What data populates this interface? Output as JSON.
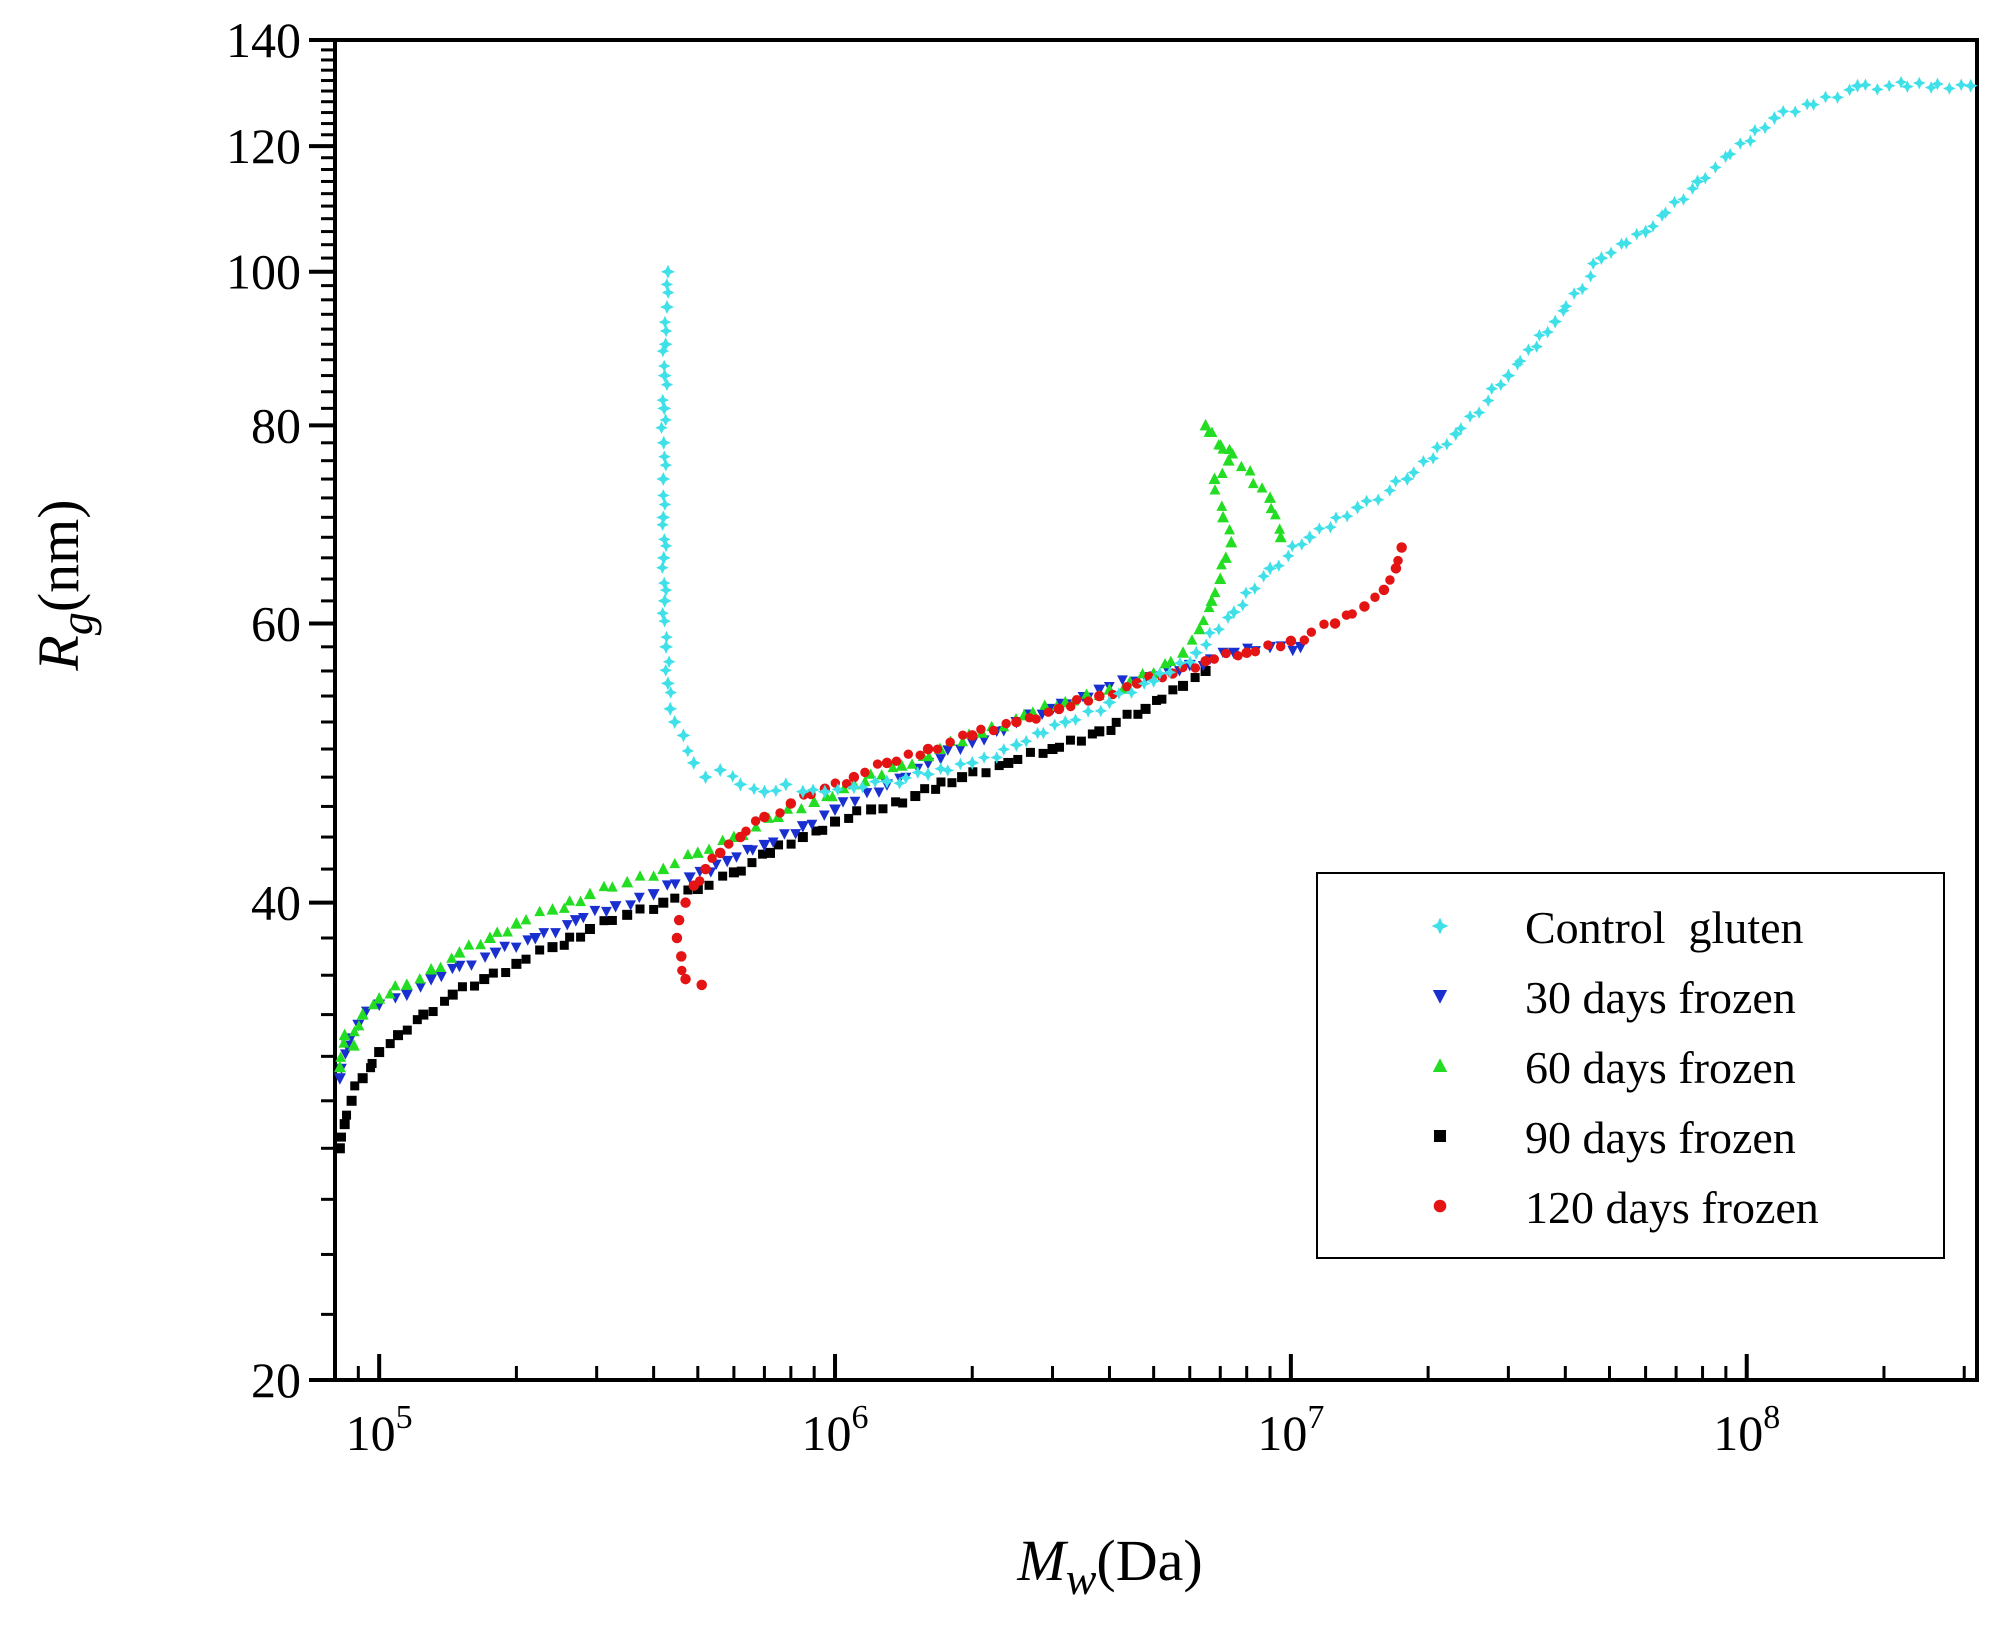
{
  "chart_data": {
    "type": "scatter",
    "title": "",
    "x_axis": {
      "scale": "log",
      "label_symbol": "M",
      "label_subscript": "w",
      "label_unit": "(Da)",
      "range": [
        80000,
        320000000
      ],
      "tick_labels": [
        {
          "value": 100000,
          "base": "10",
          "exp": "5"
        },
        {
          "value": 1000000,
          "base": "10",
          "exp": "6"
        },
        {
          "value": 10000000,
          "base": "10",
          "exp": "7"
        },
        {
          "value": 100000000,
          "base": "10",
          "exp": "8"
        }
      ]
    },
    "y_axis": {
      "scale": "log",
      "label_symbol": "R",
      "label_subscript": "g",
      "label_unit": "(nm)",
      "range": [
        20,
        140
      ],
      "tick_labels": [
        {
          "value": 20,
          "label": "20"
        },
        {
          "value": 40,
          "label": "40"
        },
        {
          "value": 60,
          "label": "60"
        },
        {
          "value": 80,
          "label": "80"
        },
        {
          "value": 100,
          "label": "100"
        },
        {
          "value": 120,
          "label": "120"
        },
        {
          "value": 140,
          "label": "140"
        }
      ]
    },
    "legend_position": "bottom-right",
    "series": [
      {
        "name": "Control  gluten",
        "color": "#3fe0e8",
        "marker": "star",
        "points": [
          [
            430000,
            100
          ],
          [
            428000,
            95
          ],
          [
            425000,
            90
          ],
          [
            423000,
            86
          ],
          [
            422000,
            82
          ],
          [
            421000,
            78
          ],
          [
            420000,
            74
          ],
          [
            420000,
            70
          ],
          [
            421000,
            66
          ],
          [
            423000,
            62
          ],
          [
            426000,
            58
          ],
          [
            430000,
            55
          ],
          [
            435000,
            53
          ],
          [
            445000,
            52
          ],
          [
            465000,
            51
          ],
          [
            490000,
            49
          ],
          [
            520000,
            48
          ],
          [
            560000,
            48.5
          ],
          [
            620000,
            47.5
          ],
          [
            700000,
            47
          ],
          [
            780000,
            47.5
          ],
          [
            850000,
            47
          ],
          [
            950000,
            47
          ],
          [
            1100000,
            47.3
          ],
          [
            1300000,
            47.7
          ],
          [
            1600000,
            48.2
          ],
          [
            2000000,
            49
          ],
          [
            2500000,
            50.3
          ],
          [
            3200000,
            52
          ],
          [
            4000000,
            53.5
          ],
          [
            5000000,
            55.2
          ],
          [
            6200000,
            57.5
          ],
          [
            7500000,
            61
          ],
          [
            9000000,
            65
          ],
          [
            11000000,
            68
          ],
          [
            14000000,
            71
          ],
          [
            18000000,
            74
          ],
          [
            23000000,
            79
          ],
          [
            30000000,
            86
          ],
          [
            38000000,
            93
          ],
          [
            48000000,
            102
          ],
          [
            60000000,
            106
          ],
          [
            78000000,
            114
          ],
          [
            115000000,
            125
          ],
          [
            175000000,
            131
          ],
          [
            310000000,
            131
          ]
        ]
      },
      {
        "name": "30 days frozen",
        "color": "#1a2fd0",
        "marker": "triangle-down",
        "points": [
          [
            82000,
            31
          ],
          [
            85000,
            32.5
          ],
          [
            90000,
            33.5
          ],
          [
            100000,
            34.5
          ],
          [
            115000,
            35
          ],
          [
            130000,
            35.8
          ],
          [
            150000,
            36.5
          ],
          [
            180000,
            37.2
          ],
          [
            220000,
            38
          ],
          [
            270000,
            39
          ],
          [
            330000,
            39.8
          ],
          [
            400000,
            40.5
          ],
          [
            480000,
            41.5
          ],
          [
            580000,
            42.5
          ],
          [
            700000,
            43.5
          ],
          [
            850000,
            44.7
          ],
          [
            1000000,
            45.8
          ],
          [
            1300000,
            47.5
          ],
          [
            1600000,
            49
          ],
          [
            2000000,
            50.5
          ],
          [
            2500000,
            52
          ],
          [
            3000000,
            53
          ],
          [
            3800000,
            54.5
          ],
          [
            4800000,
            55.5
          ],
          [
            6000000,
            56.5
          ],
          [
            7500000,
            57.5
          ],
          [
            9000000,
            58
          ],
          [
            10500000,
            58
          ]
        ]
      },
      {
        "name": "60 days frozen",
        "color": "#22dd22",
        "marker": "triangle-up",
        "points": [
          [
            82000,
            31.5
          ],
          [
            84000,
            33
          ],
          [
            88000,
            32.5
          ],
          [
            92000,
            34
          ],
          [
            100000,
            34.8
          ],
          [
            115000,
            35.5
          ],
          [
            130000,
            36.3
          ],
          [
            150000,
            37.2
          ],
          [
            175000,
            38
          ],
          [
            200000,
            38.8
          ],
          [
            240000,
            39.6
          ],
          [
            290000,
            40.5
          ],
          [
            350000,
            41.2
          ],
          [
            420000,
            42
          ],
          [
            500000,
            43
          ],
          [
            600000,
            44
          ],
          [
            750000,
            45.3
          ],
          [
            900000,
            46.3
          ],
          [
            1100000,
            47.5
          ],
          [
            1400000,
            48.8
          ],
          [
            1700000,
            50
          ],
          [
            2100000,
            51.2
          ],
          [
            2600000,
            52.5
          ],
          [
            3200000,
            53.5
          ],
          [
            4000000,
            54.5
          ],
          [
            5000000,
            55.8
          ],
          [
            5800000,
            57.5
          ],
          [
            6300000,
            59.5
          ],
          [
            6700000,
            62
          ],
          [
            7000000,
            64
          ],
          [
            7200000,
            66
          ],
          [
            7400000,
            67.5
          ],
          [
            7100000,
            70
          ],
          [
            6800000,
            74
          ],
          [
            7300000,
            76
          ],
          [
            6500000,
            80
          ],
          [
            9000000,
            72
          ],
          [
            9500000,
            68
          ]
        ]
      },
      {
        "name": "90 days frozen",
        "color": "#000000",
        "marker": "square",
        "points": [
          [
            82000,
            28
          ],
          [
            84000,
            29
          ],
          [
            87000,
            30
          ],
          [
            92000,
            31
          ],
          [
            100000,
            32.2
          ],
          [
            110000,
            33
          ],
          [
            125000,
            34
          ],
          [
            145000,
            35
          ],
          [
            170000,
            35.8
          ],
          [
            200000,
            36.6
          ],
          [
            240000,
            37.5
          ],
          [
            290000,
            38.5
          ],
          [
            350000,
            39.3
          ],
          [
            420000,
            40
          ],
          [
            500000,
            40.8
          ],
          [
            600000,
            41.8
          ],
          [
            720000,
            43
          ],
          [
            850000,
            44
          ],
          [
            1000000,
            45
          ],
          [
            1200000,
            45.8
          ],
          [
            1500000,
            46.7
          ],
          [
            1900000,
            48
          ],
          [
            2400000,
            49
          ],
          [
            3000000,
            50
          ],
          [
            3800000,
            51.3
          ],
          [
            4800000,
            53
          ],
          [
            5800000,
            54.8
          ],
          [
            6500000,
            56
          ]
        ]
      },
      {
        "name": "120 days frozen",
        "color": "#e41414",
        "marker": "circle",
        "points": [
          [
            510000,
            35.5
          ],
          [
            470000,
            35.8
          ],
          [
            460000,
            37
          ],
          [
            450000,
            38
          ],
          [
            455000,
            39
          ],
          [
            470000,
            40
          ],
          [
            490000,
            41
          ],
          [
            520000,
            42
          ],
          [
            560000,
            43
          ],
          [
            620000,
            44
          ],
          [
            700000,
            45.3
          ],
          [
            800000,
            46.2
          ],
          [
            950000,
            47.2
          ],
          [
            1100000,
            48
          ],
          [
            1300000,
            49
          ],
          [
            1600000,
            50
          ],
          [
            2000000,
            51
          ],
          [
            2500000,
            52
          ],
          [
            3100000,
            53
          ],
          [
            3800000,
            54
          ],
          [
            4600000,
            55
          ],
          [
            5500000,
            55.8
          ],
          [
            6500000,
            56.8
          ],
          [
            8000000,
            57.5
          ],
          [
            10000000,
            58.5
          ],
          [
            12500000,
            60
          ],
          [
            14500000,
            61.5
          ],
          [
            16000000,
            63
          ],
          [
            17000000,
            65
          ],
          [
            17500000,
            67
          ]
        ]
      }
    ]
  }
}
